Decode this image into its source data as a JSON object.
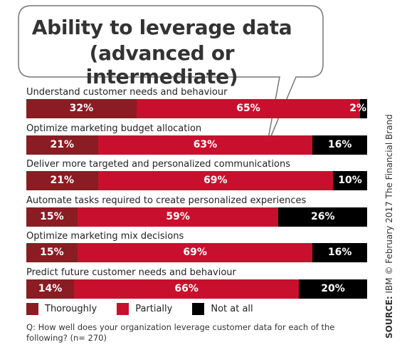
{
  "chart_data": {
    "type": "bar",
    "orientation": "horizontal",
    "stacked": true,
    "title_lines": [
      "Ability to leverage data",
      "(advanced or intermediate)"
    ],
    "categories": [
      "Understand customer needs and behaviour",
      "Optimize marketing budget allocation",
      "Deliver more targeted and personalized communications",
      "Automate tasks required to create personalized experiences",
      "Optimize marketing mix decisions",
      "Predict future customer needs and behaviour"
    ],
    "series": [
      {
        "name": "Thoroughly",
        "color": "#8a1c24",
        "values": [
          32,
          21,
          21,
          15,
          15,
          14
        ]
      },
      {
        "name": "Partially",
        "color": "#c8102e",
        "values": [
          65,
          63,
          69,
          59,
          69,
          66
        ]
      },
      {
        "name": "Not at all",
        "color": "#000000",
        "values": [
          2,
          16,
          10,
          26,
          16,
          20
        ]
      }
    ],
    "value_suffix": "%",
    "xlim": [
      0,
      100
    ],
    "legend_position": "bottom"
  },
  "footer": {
    "question": "Q: How well does your organization leverage customer data for each of the following? (n= 270)",
    "source_label": "SOURCE:",
    "source_text": " IBM © February 2017 The Financial Brand"
  }
}
